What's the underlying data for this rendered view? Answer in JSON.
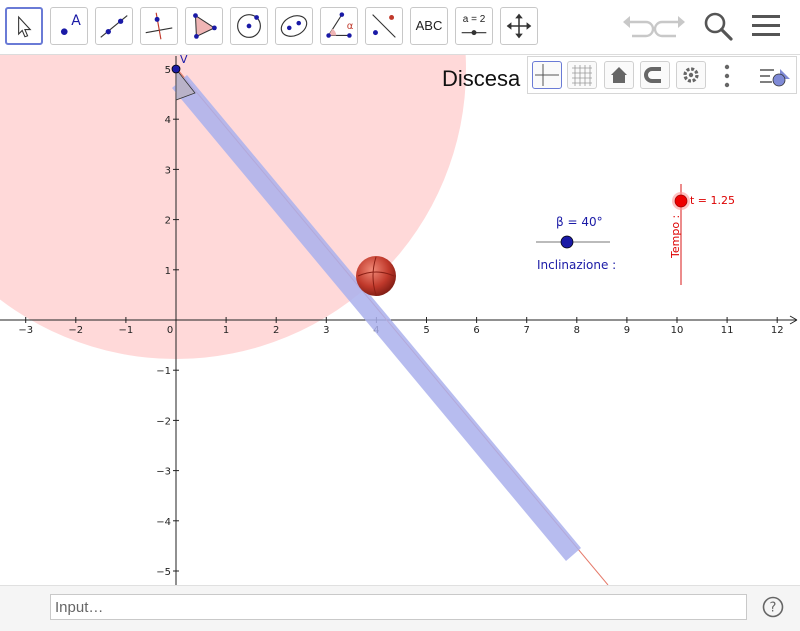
{
  "toolbar": {
    "tools": [
      {
        "name": "move-tool",
        "icon": "pointer-arrow-icon"
      },
      {
        "name": "point-tool",
        "icon": "point-icon",
        "label": "A"
      },
      {
        "name": "line-tool",
        "icon": "line-through-points-icon"
      },
      {
        "name": "perpendicular-line-tool",
        "icon": "perpendicular-line-icon"
      },
      {
        "name": "polygon-tool",
        "icon": "polygon-icon"
      },
      {
        "name": "circle-center-point-tool",
        "icon": "circle-icon"
      },
      {
        "name": "ellipse-tool",
        "icon": "ellipse-icon"
      },
      {
        "name": "angle-tool",
        "icon": "angle-icon",
        "label": "α"
      },
      {
        "name": "reflect-tool",
        "icon": "reflect-icon"
      },
      {
        "name": "text-tool",
        "icon": "text-icon",
        "label": "ABC"
      },
      {
        "name": "slider-tool",
        "icon": "slider-icon",
        "label": "a = 2"
      },
      {
        "name": "move-graphics-view-tool",
        "icon": "move-arrows-icon"
      }
    ],
    "undo_icon": "undo-icon",
    "redo_icon": "redo-icon",
    "search_icon": "search-icon",
    "menu_icon": "hamburger-menu-icon"
  },
  "graphics": {
    "title": "Discesa",
    "point_v_label": "V",
    "slider_beta_label": "β = 40°",
    "slider_beta_value": 40,
    "slider_beta_caption": "Inclinazione :",
    "slider_t_label": "t = 1.25",
    "slider_t_value": 1.25,
    "slider_t_caption": "Tempo :",
    "x_ticks": [
      "−3",
      "−2",
      "−1",
      "0",
      "1",
      "2",
      "3",
      "4",
      "5",
      "6",
      "7",
      "8",
      "9",
      "10",
      "11",
      "12"
    ],
    "y_ticks": [
      "5",
      "4",
      "3",
      "2",
      "1",
      "−1",
      "−2",
      "−3",
      "−4",
      "−5"
    ],
    "colors": {
      "circle_fill": "#ffd9d9",
      "ramp": "#aab0ec",
      "ramp_line": "#e57a6a",
      "ball": "#c0392b",
      "point_blue": "#1a1aa6",
      "slider_red": "#dd0000",
      "slider_blue": "#1a1aa6"
    }
  },
  "style_bar": {
    "buttons": [
      "axes-icon",
      "grid-icon",
      "home-icon",
      "magnet-icon",
      "settings-icon",
      "more-vertical-icon",
      "graphics-style-icon"
    ]
  },
  "input": {
    "placeholder": "Input…"
  },
  "help_icon": "help-icon"
}
